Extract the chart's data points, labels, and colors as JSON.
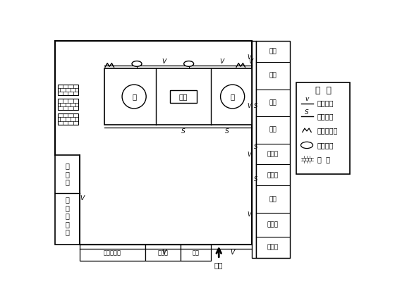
{
  "bg_color": "#ffffff",
  "line_color": "#000000",
  "right_rooms": [
    "厕所",
    "宿舍",
    "宿舍",
    "宿舍",
    "厨疗室",
    "保管室",
    "食堂",
    "会议室",
    "办公室"
  ],
  "legend_title": "图  例",
  "legend_items_text": [
    "临时用电",
    "临时用水",
    "砂浆搅拌机",
    "砼搅拌机",
    "砖  堆"
  ],
  "bottom_rooms": [
    "水工加工棚",
    "配电室",
    "门卫"
  ],
  "entry_text": "入口",
  "proc_center_label": "卵石",
  "proc_circle_label": "砂"
}
